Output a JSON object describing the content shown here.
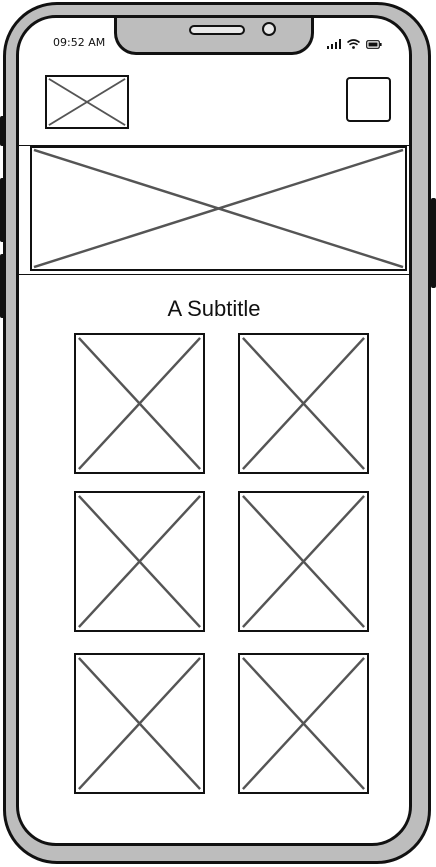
{
  "status_bar": {
    "time": "09:52 AM",
    "icons": [
      "signal-icon",
      "wifi-icon",
      "battery-icon"
    ]
  },
  "header": {
    "logo": "image-placeholder",
    "menu_button": "square-button"
  },
  "hero": {
    "image": "image-placeholder"
  },
  "content": {
    "subtitle": "A Subtitle",
    "grid_items": [
      "image-placeholder",
      "image-placeholder",
      "image-placeholder",
      "image-placeholder",
      "image-placeholder",
      "image-placeholder"
    ]
  },
  "colors": {
    "stroke": "#111111",
    "placeholder_cross": "#555555",
    "frame": "#bdbdbd",
    "screen": "#ffffff"
  }
}
